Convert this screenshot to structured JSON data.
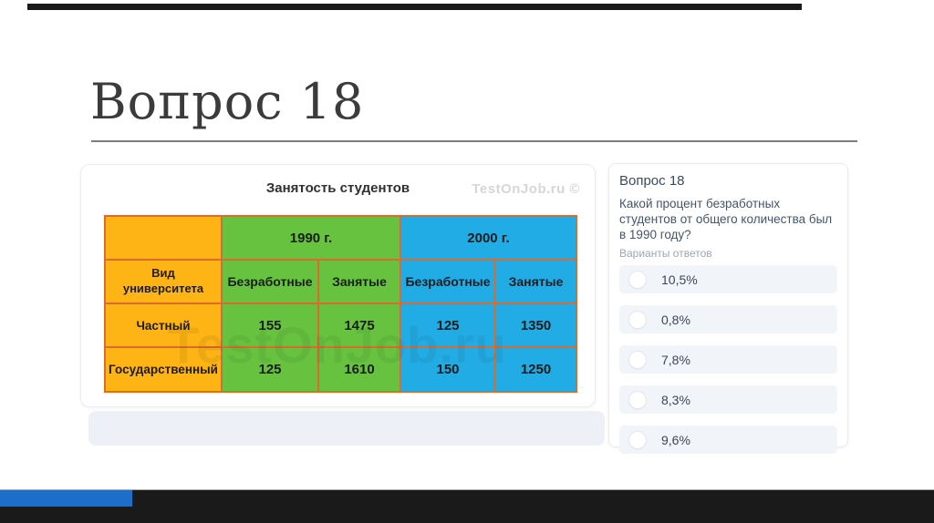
{
  "slide": {
    "title": "Вопрос 18"
  },
  "theme": {
    "accent-black": "#1a1a1a",
    "accent-blue": "#1c6ec8",
    "table-orange": "#fdb414",
    "table-green": "#67c33f",
    "table-blue": "#22ace5",
    "table-border": "#dd6b2e",
    "panel-gray": "#edf1f7",
    "option-bg": "#f1f4f9",
    "text-dark": "#3c4656",
    "muted": "#9ba6b6"
  },
  "table_card": {
    "title": "Занятость студентов",
    "watermark_small": "TestOnJob.ru ©",
    "watermark_large": "TestOnJob.ru",
    "table": {
      "corner_label": "Вид университета",
      "year_headers": [
        "1990 г.",
        "2000 г."
      ],
      "sub_headers": [
        "Безработные",
        "Занятые",
        "Безработные",
        "Занятые"
      ],
      "rows": [
        {
          "label": "Частный",
          "values": [
            "155",
            "1475",
            "125",
            "1350"
          ]
        },
        {
          "label": "Государственный",
          "values": [
            "125",
            "1610",
            "150",
            "1250"
          ]
        }
      ]
    }
  },
  "question_card": {
    "title": "Вопрос 18",
    "question": "Какой процент безработных студентов от общего количества был в 1990 году?",
    "options_label": "Варианты ответов",
    "options": [
      "10,5%",
      "0,8%",
      "7,8%",
      "8,3%",
      "9,6%"
    ]
  }
}
